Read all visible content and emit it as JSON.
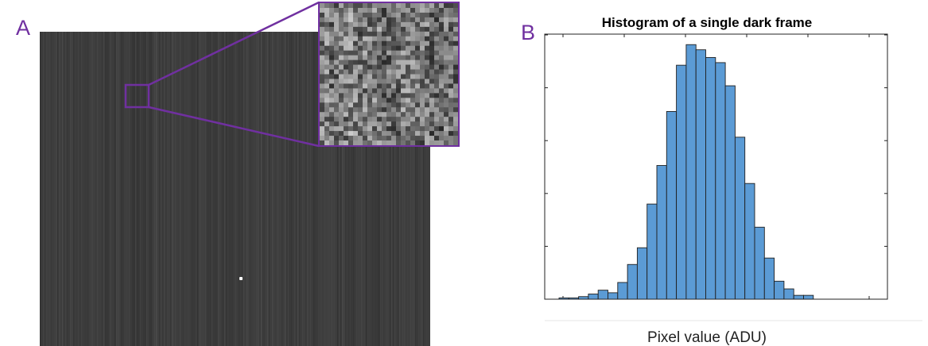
{
  "panels": {
    "a": {
      "label": "A"
    },
    "b": {
      "label": "B"
    }
  },
  "colors": {
    "accent": "#7030a0",
    "bar_fill": "#5b9bd5",
    "bar_edge": "#1f1f1f",
    "frame_bg": "#3b3b3b"
  },
  "chart_data": {
    "type": "bar",
    "title": "Histogram of a single dark frame",
    "xlabel": "Pixel value (ADU)",
    "ylabel": "",
    "x_tick_labels_shown": false,
    "y_tick_labels_shown": false,
    "grid": false,
    "values": [
      0.5,
      0.5,
      1,
      2,
      3.5,
      2.5,
      6.5,
      13.5,
      20,
      37,
      52,
      73,
      91,
      99,
      97,
      94,
      92,
      83,
      63,
      45,
      28,
      16,
      7,
      4,
      1.5,
      1.5
    ],
    "ylim": [
      0,
      100
    ]
  }
}
